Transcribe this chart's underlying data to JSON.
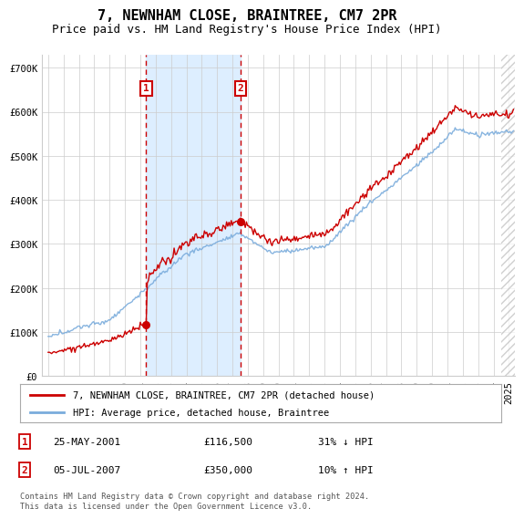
{
  "title": "7, NEWNHAM CLOSE, BRAINTREE, CM7 2PR",
  "subtitle": "Price paid vs. HM Land Registry's House Price Index (HPI)",
  "ylim": [
    0,
    730000
  ],
  "yticks": [
    0,
    100000,
    200000,
    300000,
    400000,
    500000,
    600000,
    700000
  ],
  "ytick_labels": [
    "£0",
    "£100K",
    "£200K",
    "£300K",
    "£400K",
    "£500K",
    "£600K",
    "£700K"
  ],
  "xlim_start": 1994.6,
  "xlim_end": 2025.4,
  "xticks": [
    1995,
    1996,
    1997,
    1998,
    1999,
    2000,
    2001,
    2002,
    2003,
    2004,
    2005,
    2006,
    2007,
    2008,
    2009,
    2010,
    2011,
    2012,
    2013,
    2014,
    2015,
    2016,
    2017,
    2018,
    2019,
    2020,
    2021,
    2022,
    2023,
    2024,
    2025
  ],
  "purchase1_x": 2001.38,
  "purchase1_y": 116500,
  "purchase2_x": 2007.51,
  "purchase2_y": 350000,
  "purchase1_label": "1",
  "purchase2_label": "2",
  "purchase1_date": "25-MAY-2001",
  "purchase1_price": "£116,500",
  "purchase1_hpi": "31% ↓ HPI",
  "purchase2_date": "05-JUL-2007",
  "purchase2_price": "£350,000",
  "purchase2_hpi": "10% ↑ HPI",
  "shade_start": 2001.38,
  "shade_end": 2007.51,
  "legend_line1": "7, NEWNHAM CLOSE, BRAINTREE, CM7 2PR (detached house)",
  "legend_line2": "HPI: Average price, detached house, Braintree",
  "footer": "Contains HM Land Registry data © Crown copyright and database right 2024.\nThis data is licensed under the Open Government Licence v3.0.",
  "title_fontsize": 11,
  "subtitle_fontsize": 9,
  "tick_label_fontsize": 7.5,
  "red_color": "#cc0000",
  "blue_color": "#7aacdc",
  "shade_color": "#ddeeff",
  "grid_color": "#cccccc",
  "background_color": "#ffffff"
}
